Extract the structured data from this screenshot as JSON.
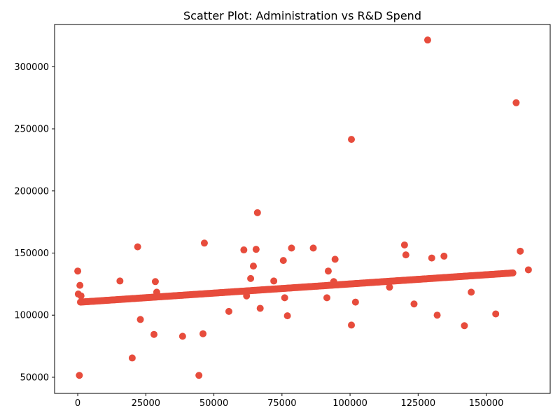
{
  "chart_data": {
    "type": "scatter",
    "title": "Scatter Plot: Administration vs R&D Spend",
    "xlabel": "",
    "ylabel": "",
    "xlim": [
      -8500,
      173500
    ],
    "ylim": [
      37000,
      334000
    ],
    "xticks": [
      0,
      25000,
      50000,
      75000,
      100000,
      125000,
      150000
    ],
    "yticks": [
      50000,
      100000,
      150000,
      200000,
      250000,
      300000
    ],
    "xtick_labels": [
      "0",
      "25000",
      "50000",
      "75000",
      "100000",
      "125000",
      "150000"
    ],
    "ytick_labels": [
      "50000",
      "100000",
      "150000",
      "200000",
      "250000",
      "300000"
    ],
    "grid": false,
    "marker_color": "#e74c3c",
    "trend_band": {
      "x_start": 1000,
      "x_end": 160000,
      "y_start": 110500,
      "y_end": 134000,
      "step": 400
    },
    "points": [
      {
        "x": 0,
        "y": 135500
      },
      {
        "x": 200,
        "y": 117000
      },
      {
        "x": 800,
        "y": 124000
      },
      {
        "x": 1200,
        "y": 115500
      },
      {
        "x": 600,
        "y": 51500
      },
      {
        "x": 15500,
        "y": 127500
      },
      {
        "x": 20000,
        "y": 65500
      },
      {
        "x": 22000,
        "y": 155000
      },
      {
        "x": 23000,
        "y": 96500
      },
      {
        "x": 28000,
        "y": 84500
      },
      {
        "x": 28500,
        "y": 127000
      },
      {
        "x": 29000,
        "y": 118500
      },
      {
        "x": 38500,
        "y": 83000
      },
      {
        "x": 44500,
        "y": 51500
      },
      {
        "x": 46000,
        "y": 85000
      },
      {
        "x": 46500,
        "y": 158000
      },
      {
        "x": 55500,
        "y": 103000
      },
      {
        "x": 61000,
        "y": 152500
      },
      {
        "x": 62000,
        "y": 115500
      },
      {
        "x": 63500,
        "y": 129500
      },
      {
        "x": 64500,
        "y": 139500
      },
      {
        "x": 65500,
        "y": 153000
      },
      {
        "x": 66000,
        "y": 182500
      },
      {
        "x": 67000,
        "y": 105500
      },
      {
        "x": 72000,
        "y": 127500
      },
      {
        "x": 75500,
        "y": 144000
      },
      {
        "x": 76000,
        "y": 114000
      },
      {
        "x": 77000,
        "y": 99500
      },
      {
        "x": 78500,
        "y": 154000
      },
      {
        "x": 86500,
        "y": 154000
      },
      {
        "x": 91500,
        "y": 114000
      },
      {
        "x": 92000,
        "y": 135500
      },
      {
        "x": 94000,
        "y": 127000
      },
      {
        "x": 94500,
        "y": 145000
      },
      {
        "x": 100500,
        "y": 241500
      },
      {
        "x": 100500,
        "y": 92000
      },
      {
        "x": 102000,
        "y": 110500
      },
      {
        "x": 114500,
        "y": 122500
      },
      {
        "x": 120000,
        "y": 156500
      },
      {
        "x": 120500,
        "y": 148500
      },
      {
        "x": 123500,
        "y": 109000
      },
      {
        "x": 128500,
        "y": 321500
      },
      {
        "x": 130000,
        "y": 146000
      },
      {
        "x": 132000,
        "y": 100000
      },
      {
        "x": 134500,
        "y": 147500
      },
      {
        "x": 142000,
        "y": 91500
      },
      {
        "x": 144500,
        "y": 118500
      },
      {
        "x": 153500,
        "y": 101000
      },
      {
        "x": 161000,
        "y": 271000
      },
      {
        "x": 162500,
        "y": 151500
      },
      {
        "x": 165500,
        "y": 136500
      }
    ]
  }
}
